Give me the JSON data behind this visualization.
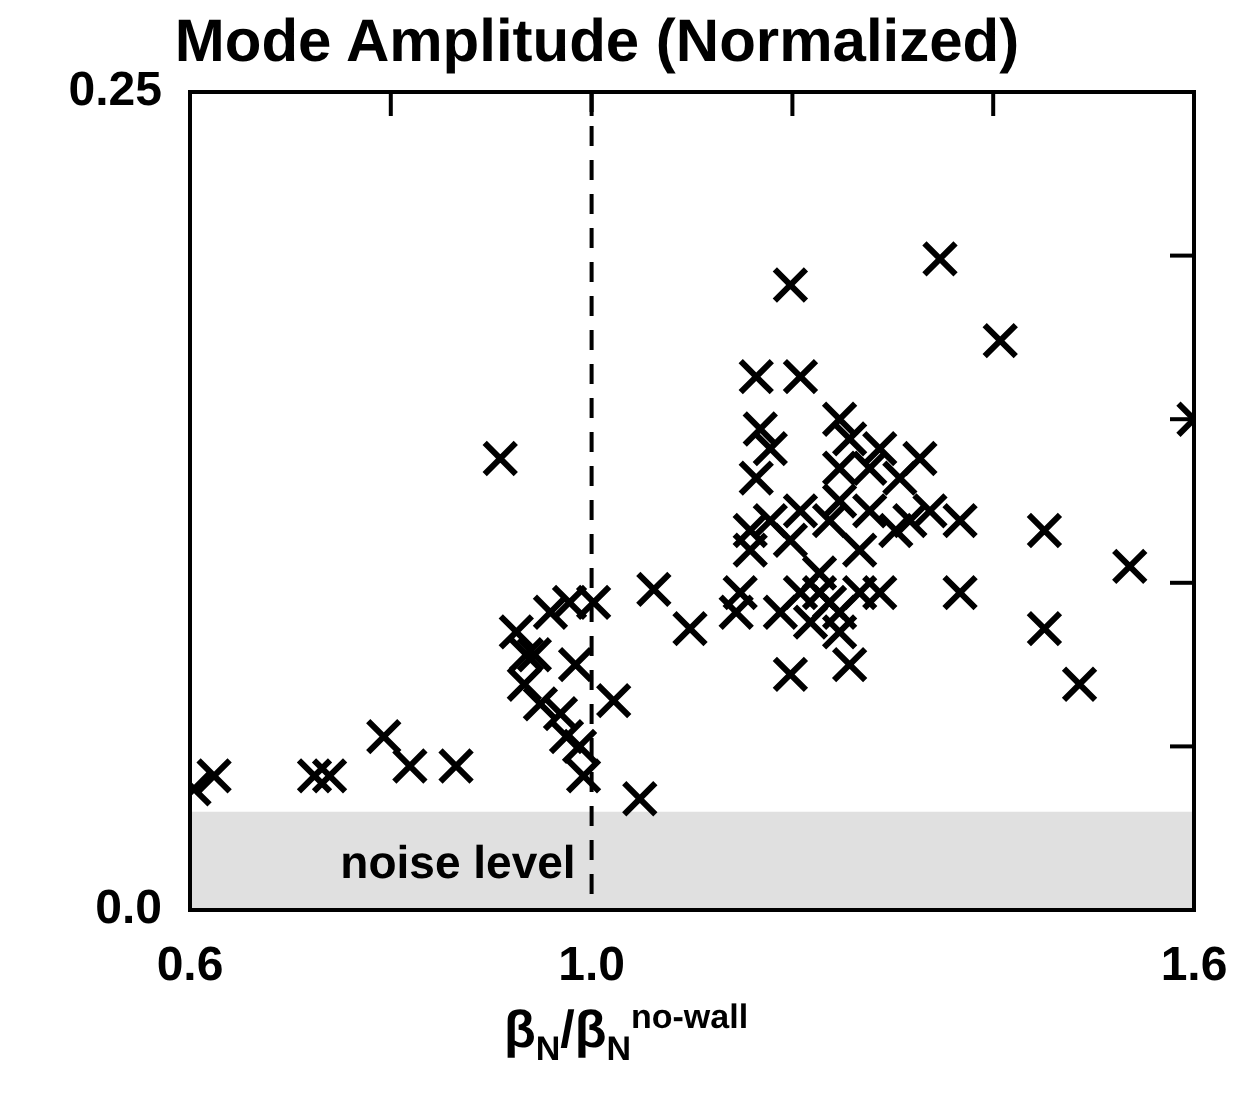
{
  "chart_data": {
    "type": "scatter",
    "title": "Mode Amplitude (Normalized)",
    "xlabel": "β$_{N}$/β$_{N}$$^{no-wall}$",
    "x": [
      0.604,
      0.624,
      0.724,
      0.739,
      0.793,
      0.819,
      0.865,
      0.909,
      0.925,
      0.935,
      0.933,
      0.943,
      0.949,
      0.959,
      0.969,
      0.975,
      0.984,
      0.978,
      0.988,
      0.992,
      1.002,
      1.022,
      1.048,
      1.062,
      1.098,
      1.164,
      1.144,
      1.188,
      1.198,
      1.208,
      1.164,
      1.168,
      1.178,
      1.178,
      1.158,
      1.148,
      1.158,
      1.198,
      1.208,
      1.208,
      1.218,
      1.227,
      1.237,
      1.247,
      1.257,
      1.198,
      1.227,
      1.247,
      1.267,
      1.267,
      1.277,
      1.287,
      1.247,
      1.237,
      1.247,
      1.257,
      1.247,
      1.277,
      1.287,
      1.307,
      1.317,
      1.327,
      1.337,
      1.303,
      1.347,
      1.367,
      1.367,
      1.407,
      1.451,
      1.451,
      1.486,
      1.536,
      1.6
    ],
    "series": [
      {
        "color": "#000000",
        "values": [
          0.037,
          0.041,
          0.041,
          0.041,
          0.053,
          0.044,
          0.044,
          0.138,
          0.085,
          0.078,
          0.069,
          0.078,
          0.063,
          0.091,
          0.06,
          0.053,
          0.075,
          0.094,
          0.05,
          0.041,
          0.094,
          0.064,
          0.034,
          0.098,
          0.086,
          0.132,
          0.091,
          0.091,
          0.191,
          0.163,
          0.163,
          0.147,
          0.141,
          0.119,
          0.11,
          0.097,
          0.116,
          0.113,
          0.122,
          0.097,
          0.088,
          0.103,
          0.094,
          0.085,
          0.075,
          0.072,
          0.097,
          0.091,
          0.097,
          0.11,
          0.122,
          0.097,
          0.125,
          0.119,
          0.15,
          0.144,
          0.135,
          0.135,
          0.141,
          0.132,
          0.119,
          0.138,
          0.122,
          0.116,
          0.199,
          0.119,
          0.097,
          0.174,
          0.116,
          0.086,
          0.069,
          0.105,
          0.15
        ]
      }
    ],
    "marker": "cross",
    "xlim": [
      0.6,
      1.6
    ],
    "xticks": [
      0.6,
      {
        "value": 0.8,
        "label": null
      },
      {
        "value": 1.0,
        "label": "1.0"
      },
      {
        "value": 1.2,
        "label": null
      },
      {
        "value": 1.4,
        "label": null
      },
      1.6
    ],
    "ylim": [
      0.0,
      0.25
    ],
    "yticks": [
      {
        "value": 0,
        "label": "0.0"
      },
      {
        "value": 0.05,
        "label": null
      },
      {
        "value": 0.1,
        "label": null
      },
      {
        "value": 0.15,
        "label": null
      },
      {
        "value": 0.2,
        "label": null
      },
      0.25
    ],
    "grid": false,
    "legend": false,
    "ref_lines": [
      {
        "axis": "x",
        "value": 1.0,
        "color": "#000000",
        "line_style": "dashed"
      }
    ],
    "bands": [
      {
        "axis": "y",
        "from": 0,
        "to": 0.03,
        "label": "noise level",
        "color": "#e0e0e0"
      }
    ]
  }
}
